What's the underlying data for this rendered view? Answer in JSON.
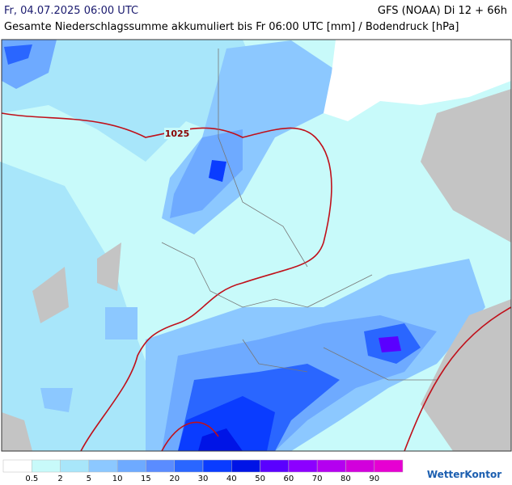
{
  "header": {
    "title": "Fr, 04.07.2025 06:00 UTC",
    "model": "GFS (NOAA) Di 12 + 66h",
    "subtitle": "Gesamte Niederschlagssumme akkumuliert bis Fr 06:00 UTC [mm] / Bodendruck [hPa]"
  },
  "map": {
    "isobar_label": "1025"
  },
  "legend": {
    "colors": [
      "#ffffff",
      "#c8fafa",
      "#a8e6fa",
      "#8cc8ff",
      "#6eaaff",
      "#5a8cff",
      "#2a66ff",
      "#0a3cff",
      "#0014e6",
      "#5a00ff",
      "#8c00ff",
      "#b400f0",
      "#d200dc",
      "#e600d2"
    ],
    "labels": [
      "0.5",
      "2",
      "5",
      "10",
      "15",
      "20",
      "30",
      "40",
      "50",
      "60",
      "70",
      "80",
      "90"
    ]
  },
  "brand": "WetterKontor"
}
